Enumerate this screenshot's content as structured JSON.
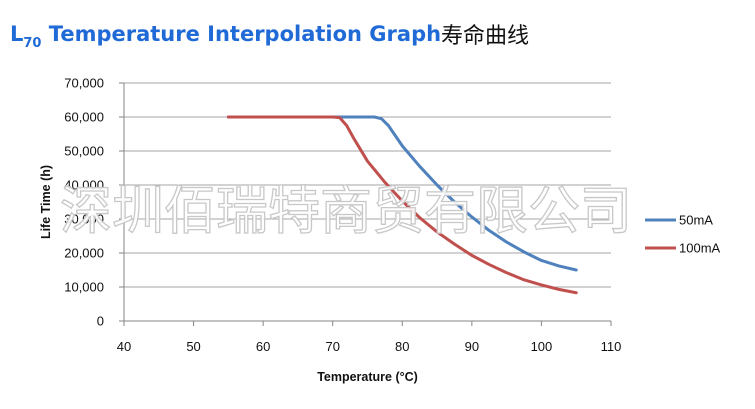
{
  "header": {
    "title_main": "L",
    "title_sub": "70",
    "title_rest": " Temperature Interpolation Graph",
    "subtitle": "寿命曲线"
  },
  "watermark": "深圳佰瑞特商贸有限公司",
  "colors": {
    "title": "#1f6ad6",
    "series_50mA": "#4f81bd",
    "series_100mA": "#c0504d",
    "grid": "#a6a6a6"
  },
  "chart_data": {
    "type": "line",
    "title": "",
    "xlabel": "Temperature (°C)",
    "ylabel": "Life Time (h)",
    "xlim": [
      40,
      110
    ],
    "ylim": [
      0,
      70000
    ],
    "xticks": [
      "40",
      "50",
      "60",
      "70",
      "80",
      "90",
      "100",
      "110"
    ],
    "yticks": [
      "0",
      "10,000",
      "20,000",
      "30,000",
      "40,000",
      "50,000",
      "60,000",
      "70,000"
    ],
    "grid": "horizontal",
    "legend_position": "right",
    "series": [
      {
        "name": "50mA",
        "color": "#4f81bd",
        "x": [
          55,
          60,
          65,
          70,
          75,
          76,
          77,
          78,
          80,
          82.5,
          85,
          87.5,
          90,
          92.5,
          95,
          97.5,
          100,
          102.5,
          105
        ],
        "y": [
          60000,
          60000,
          60000,
          60000,
          60000,
          60000,
          59500,
          57500,
          51500,
          45500,
          40000,
          35000,
          30600,
          26600,
          23200,
          20300,
          17800,
          16200,
          15000
        ]
      },
      {
        "name": "100mA",
        "color": "#c0504d",
        "x": [
          55,
          60,
          65,
          70,
          71,
          72,
          73,
          75,
          77.5,
          80,
          82.5,
          85,
          87.5,
          90,
          92.5,
          95,
          97.5,
          100,
          102.5,
          105
        ],
        "y": [
          60000,
          60000,
          60000,
          60000,
          59800,
          57500,
          53800,
          47000,
          40800,
          35300,
          30400,
          26200,
          22600,
          19300,
          16600,
          14200,
          12100,
          10600,
          9300,
          8300
        ]
      }
    ]
  }
}
